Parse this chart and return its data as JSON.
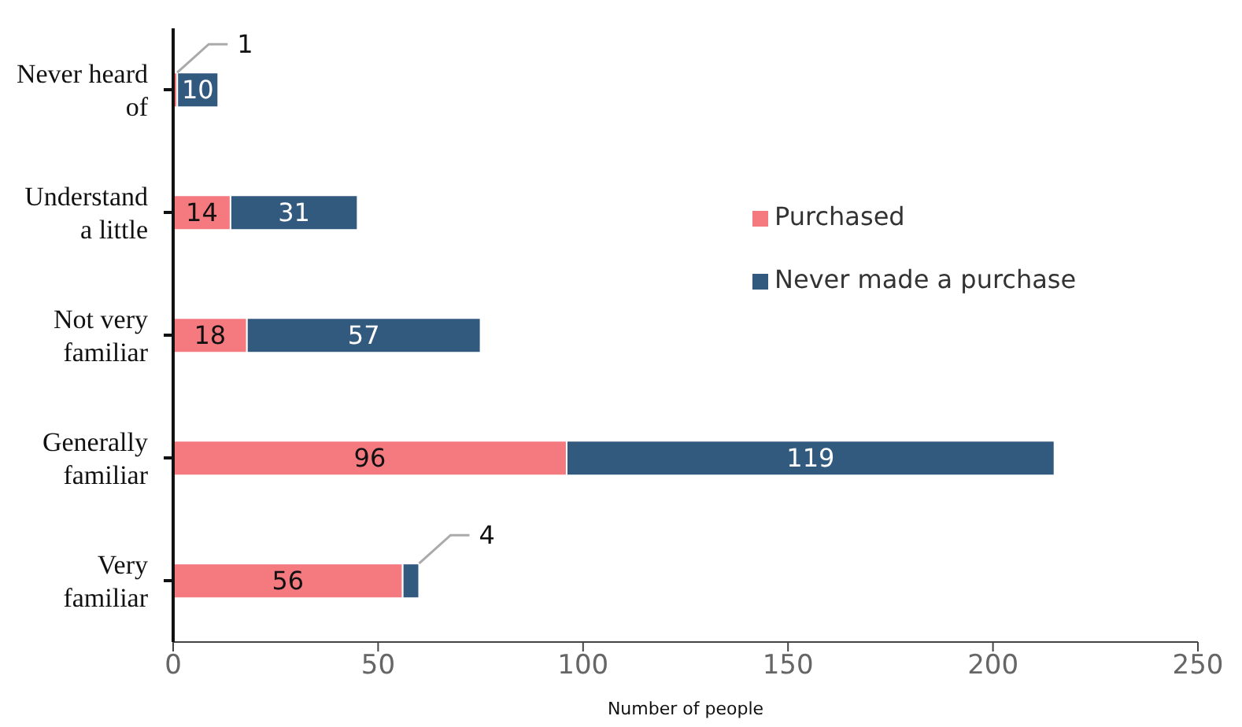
{
  "chart_data": {
    "type": "bar",
    "orientation": "horizontal",
    "stacked": true,
    "xlabel": "Number of people",
    "categories": [
      "Never heard of",
      "Understand a little",
      "Not very familiar",
      "Generally familiar",
      "Very familiar"
    ],
    "series": [
      {
        "name": "Purchased",
        "color": "#f47a80",
        "values": [
          1,
          14,
          18,
          96,
          56
        ]
      },
      {
        "name": "Never made a purchase",
        "color": "#325a7e",
        "values": [
          10,
          31,
          57,
          119,
          4
        ]
      }
    ],
    "xlim": [
      0,
      250
    ],
    "xticks": [
      0,
      50,
      100,
      150,
      200,
      250
    ],
    "data_labels": true,
    "legend": "right",
    "grid": false
  }
}
